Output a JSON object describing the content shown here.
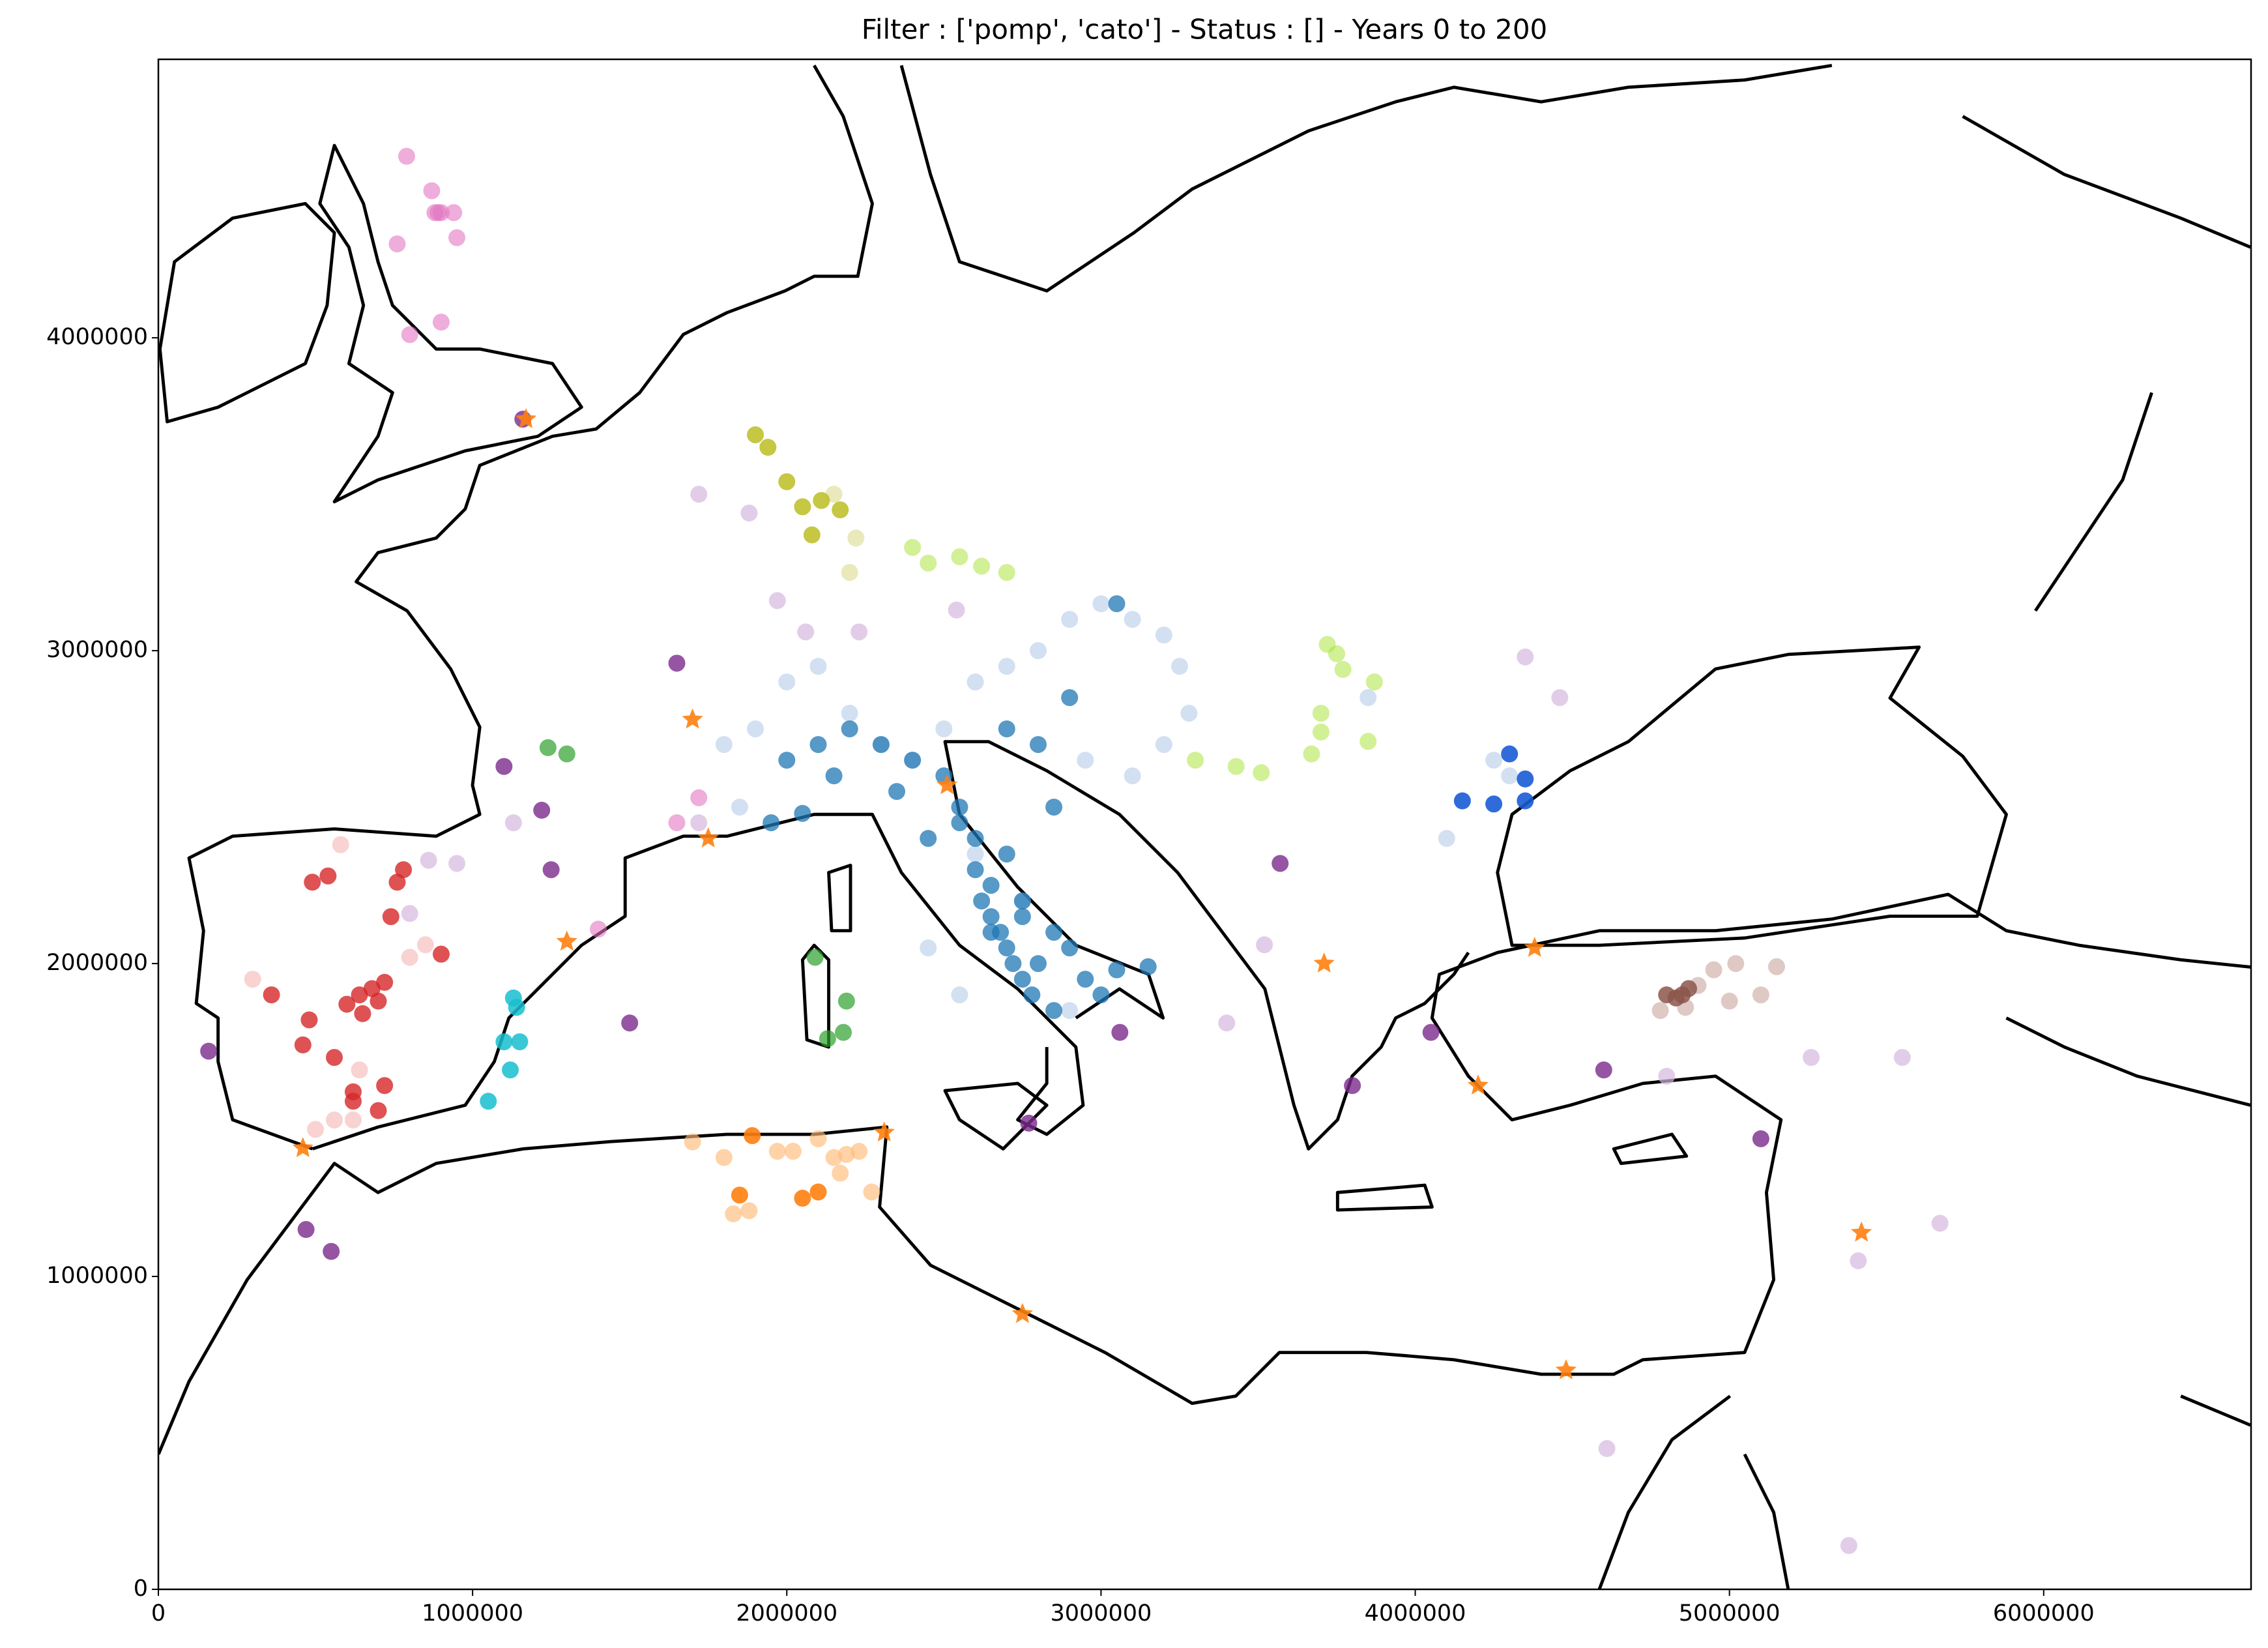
{
  "chart_data": {
    "type": "scatter",
    "title": "Filter : ['pomp', 'cato'] - Status : [] - Years 0 to 200",
    "xlim": [
      0,
      6660000
    ],
    "ylim": [
      0,
      4890000
    ],
    "xticks": [
      0,
      1000000,
      2000000,
      3000000,
      4000000,
      5000000,
      6000000
    ],
    "yticks": [
      0,
      1000000,
      2000000,
      3000000,
      4000000
    ],
    "grid": false,
    "series": [
      {
        "color": "#aec7e8",
        "opacity": 0.55,
        "marker": "circle",
        "x": [
          1800000,
          1900000,
          2000000,
          2100000,
          2200000,
          2300000,
          2400000,
          2500000,
          2600000,
          2700000,
          2800000,
          2900000,
          3000000,
          3100000,
          3200000,
          3250000,
          3280000,
          3200000,
          3100000,
          2950000,
          1850000,
          2750000,
          2600000,
          4100000,
          4250000,
          4300000,
          3850000,
          2900000,
          2550000,
          2450000
        ],
        "values": [
          2700000,
          2750000,
          2900000,
          2950000,
          2800000,
          2700000,
          2650000,
          2750000,
          2900000,
          2950000,
          3000000,
          3100000,
          3150000,
          3100000,
          3050000,
          2950000,
          2800000,
          2700000,
          2600000,
          2650000,
          2500000,
          2200000,
          2350000,
          2400000,
          2650000,
          2600000,
          2850000,
          1850000,
          1900000,
          2050000
        ]
      },
      {
        "color": "#1f77b4",
        "opacity": 0.75,
        "marker": "circle",
        "x": [
          2000000,
          2100000,
          2200000,
          2300000,
          2400000,
          2500000,
          2550000,
          2600000,
          2620000,
          2650000,
          2680000,
          2700000,
          2720000,
          2750000,
          2780000,
          2800000,
          2650000,
          2600000,
          2700000,
          2750000,
          2850000,
          2900000,
          2950000,
          3000000,
          3050000,
          3150000,
          2850000,
          2900000,
          3050000,
          2800000,
          2700000,
          2550000,
          2450000,
          2350000,
          2150000,
          2050000,
          1950000,
          2650000,
          2750000,
          2850000
        ],
        "values": [
          2650000,
          2700000,
          2750000,
          2700000,
          2650000,
          2600000,
          2450000,
          2300000,
          2200000,
          2150000,
          2100000,
          2050000,
          2000000,
          1950000,
          1900000,
          2000000,
          2250000,
          2400000,
          2350000,
          2200000,
          2100000,
          2050000,
          1950000,
          1900000,
          1980000,
          1990000,
          2500000,
          2850000,
          3150000,
          2700000,
          2750000,
          2500000,
          2400000,
          2550000,
          2600000,
          2480000,
          2450000,
          2100000,
          2150000,
          1850000
        ]
      },
      {
        "color": "#1a5bd6",
        "opacity": 0.9,
        "marker": "circle",
        "x": [
          4150000,
          4250000,
          4350000,
          4350000,
          4300000
        ],
        "values": [
          2520000,
          2510000,
          2520000,
          2590000,
          2670000
        ]
      },
      {
        "color": "#f4a6a6",
        "opacity": 0.5,
        "marker": "circle",
        "x": [
          580000,
          800000,
          850000,
          300000,
          560000,
          620000,
          500000,
          640000
        ],
        "values": [
          2380000,
          2020000,
          2060000,
          1950000,
          1500000,
          1500000,
          1470000,
          1660000
        ]
      },
      {
        "color": "#d62728",
        "opacity": 0.8,
        "marker": "circle",
        "x": [
          490000,
          540000,
          600000,
          640000,
          680000,
          720000,
          760000,
          780000,
          740000,
          700000,
          620000,
          560000,
          460000,
          480000,
          620000,
          720000,
          700000,
          360000,
          900000,
          650000
        ],
        "values": [
          2260000,
          2280000,
          1870000,
          1900000,
          1920000,
          1940000,
          2260000,
          2300000,
          2150000,
          1880000,
          1590000,
          1700000,
          1740000,
          1820000,
          1560000,
          1610000,
          1530000,
          1900000,
          2030000,
          1840000
        ]
      },
      {
        "color": "#17becf",
        "opacity": 0.85,
        "marker": "circle",
        "x": [
          1130000,
          1140000,
          1150000,
          1100000,
          1120000,
          1050000
        ],
        "values": [
          1890000,
          1860000,
          1750000,
          1750000,
          1660000,
          1560000
        ]
      },
      {
        "color": "#2ca02c",
        "opacity": 0.7,
        "marker": "circle",
        "x": [
          1240000,
          1300000,
          2090000,
          2130000,
          2180000,
          2190000
        ],
        "values": [
          2690000,
          2670000,
          2020000,
          1760000,
          1780000,
          1880000
        ]
      },
      {
        "color": "#dbdb8d",
        "opacity": 0.6,
        "marker": "circle",
        "x": [
          2150000,
          2220000,
          2200000
        ],
        "values": [
          3500000,
          3360000,
          3250000
        ]
      },
      {
        "color": "#bcbd22",
        "opacity": 0.85,
        "marker": "circle",
        "x": [
          1900000,
          1940000,
          2000000,
          2050000,
          2110000,
          2080000,
          2170000
        ],
        "values": [
          3690000,
          3650000,
          3540000,
          3460000,
          3480000,
          3370000,
          3450000
        ]
      },
      {
        "color": "#a6e22e",
        "opacity": 0.5,
        "marker": "circle",
        "x": [
          2400000,
          2450000,
          2550000,
          2620000,
          2700000,
          3300000,
          3430000,
          3510000,
          3670000,
          3700000,
          3720000,
          3750000,
          3770000,
          3870000,
          3700000,
          3850000
        ],
        "values": [
          3330000,
          3280000,
          3300000,
          3270000,
          3250000,
          2650000,
          2630000,
          2610000,
          2670000,
          2800000,
          3020000,
          2990000,
          2940000,
          2900000,
          2740000,
          2710000
        ]
      },
      {
        "color": "#ffbb78",
        "opacity": 0.65,
        "marker": "circle",
        "x": [
          1700000,
          1800000,
          1880000,
          1970000,
          2020000,
          2100000,
          2150000,
          2190000,
          2230000,
          2270000,
          2170000,
          1830000
        ],
        "values": [
          1430000,
          1380000,
          1210000,
          1400000,
          1400000,
          1440000,
          1380000,
          1390000,
          1400000,
          1270000,
          1330000,
          1200000
        ]
      },
      {
        "color": "#ff7f0e",
        "opacity": 0.9,
        "marker": "circle",
        "x": [
          1850000,
          1890000,
          2050000,
          2100000
        ],
        "values": [
          1260000,
          1450000,
          1250000,
          1270000
        ]
      },
      {
        "color": "#c49c94",
        "opacity": 0.55,
        "marker": "circle",
        "x": [
          4900000,
          4950000,
          5000000,
          5020000,
          5100000,
          5150000,
          4780000,
          4860000
        ],
        "values": [
          1930000,
          1980000,
          1880000,
          2000000,
          1900000,
          1990000,
          1850000,
          1860000
        ]
      },
      {
        "color": "#8c564b",
        "opacity": 0.85,
        "marker": "circle",
        "x": [
          4800000,
          4830000,
          4870000,
          4850000
        ],
        "values": [
          1900000,
          1890000,
          1920000,
          1900000
        ]
      },
      {
        "color": "#d5b8e0",
        "opacity": 0.7,
        "marker": "circle",
        "x": [
          1720000,
          1880000,
          1970000,
          2060000,
          2230000,
          2540000,
          3400000,
          3520000,
          4350000,
          4460000,
          4800000,
          5260000,
          5550000,
          5670000,
          5410000,
          4610000,
          5380000,
          1130000,
          860000,
          950000,
          800000,
          1720000
        ],
        "values": [
          3500000,
          3440000,
          3160000,
          3060000,
          3060000,
          3130000,
          1810000,
          2060000,
          2980000,
          2850000,
          1640000,
          1700000,
          1700000,
          1170000,
          1050000,
          450000,
          140000,
          2450000,
          2330000,
          2320000,
          2160000,
          2450000
        ]
      },
      {
        "color": "#7b2a8c",
        "opacity": 0.8,
        "marker": "circle",
        "x": [
          160000,
          550000,
          470000,
          1500000,
          1220000,
          1250000,
          1650000,
          1160000,
          3060000,
          2770000,
          3800000,
          4050000,
          4600000,
          5100000,
          1100000,
          3570000
        ],
        "values": [
          1720000,
          1080000,
          1150000,
          1810000,
          2490000,
          2300000,
          2960000,
          3740000,
          1780000,
          1490000,
          1610000,
          1780000,
          1660000,
          1440000,
          2630000,
          2320000
        ]
      },
      {
        "color": "#e377c2",
        "opacity": 0.6,
        "marker": "circle",
        "x": [
          790000,
          870000,
          880000,
          890000,
          900000,
          940000,
          950000,
          760000,
          900000,
          800000,
          1650000,
          1400000,
          1720000
        ],
        "values": [
          4580000,
          4470000,
          4400000,
          4400000,
          4400000,
          4400000,
          4320000,
          4300000,
          4050000,
          4010000,
          2450000,
          2110000,
          2530000
        ]
      },
      {
        "color": "#ff7f0e",
        "opacity": 0.9,
        "marker": "star",
        "x": [
          1170000,
          1750000,
          1700000,
          1300000,
          2510000,
          460000,
          2310000,
          2750000,
          3710000,
          4200000,
          4380000,
          4480000,
          5420000
        ],
        "values": [
          3740000,
          2400000,
          2780000,
          2070000,
          2570000,
          1410000,
          1460000,
          880000,
          2000000,
          1610000,
          2050000,
          700000,
          1140000
        ]
      }
    ]
  }
}
